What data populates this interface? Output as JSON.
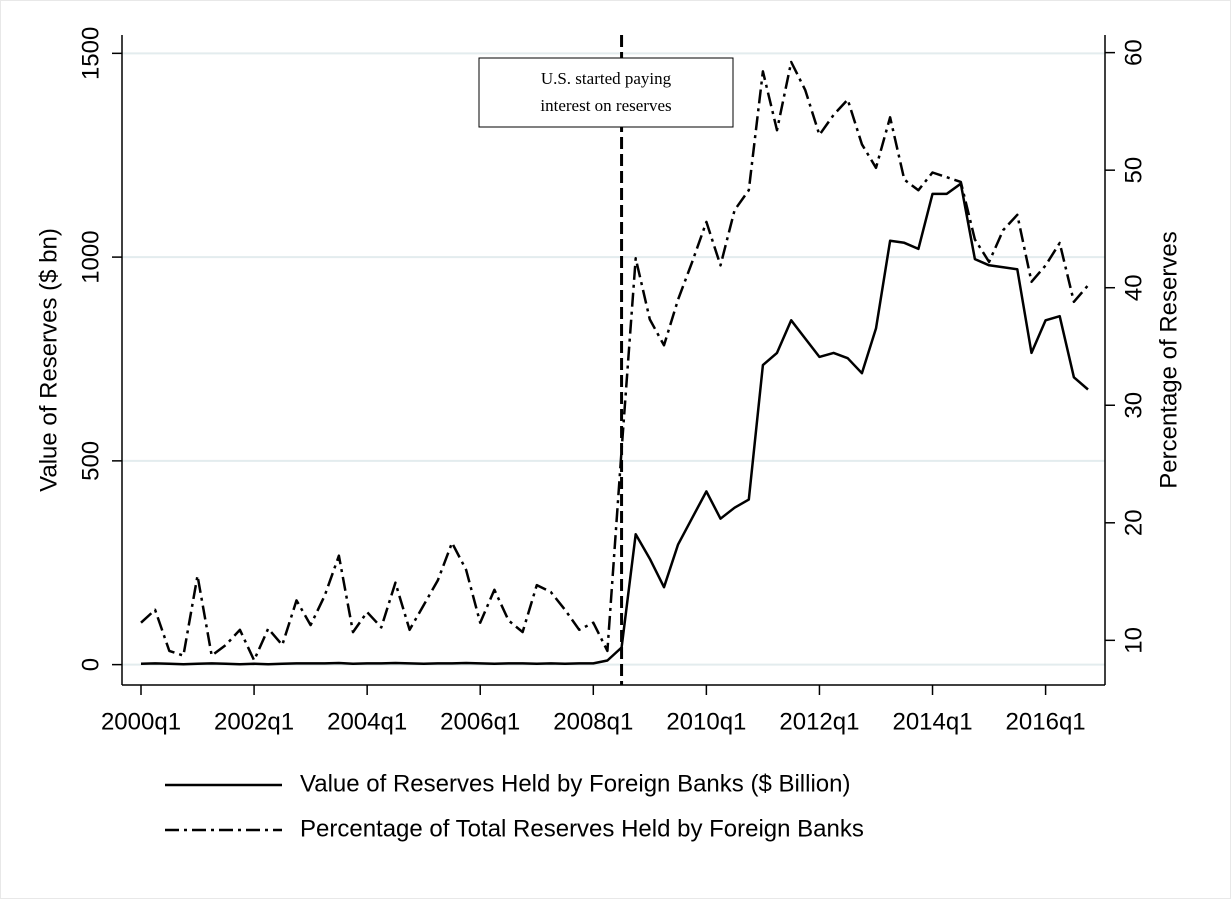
{
  "chart_data": {
    "type": "line",
    "ylabel": "Value of Reserves ($ bn)",
    "y2label": "Percentage of Reserves",
    "categories": [
      "2000q1",
      null,
      null,
      null,
      null,
      null,
      null,
      null,
      "2002q1",
      null,
      null,
      null,
      null,
      null,
      null,
      null,
      "2004q1",
      null,
      null,
      null,
      null,
      null,
      null,
      null,
      "2006q1",
      null,
      null,
      null,
      null,
      null,
      null,
      null,
      "2008q1",
      null,
      null,
      null,
      null,
      null,
      null,
      null,
      "2010q1",
      null,
      null,
      null,
      null,
      null,
      null,
      null,
      "2012q1",
      null,
      null,
      null,
      null,
      null,
      null,
      null,
      "2014q1",
      null,
      null,
      null,
      null,
      null,
      null,
      null,
      "2016q1",
      null,
      null,
      null
    ],
    "series": [
      {
        "name": "Value of Reserves Held by Foreign Banks ($ Billion)",
        "color": "#000000",
        "dash": "solid",
        "values": [
          2,
          3,
          2,
          1,
          2,
          3,
          2,
          1,
          2,
          1,
          2,
          3,
          3,
          3,
          4,
          2,
          3,
          3,
          4,
          3,
          2,
          3,
          3,
          4,
          3,
          2,
          3,
          3,
          2,
          3,
          2,
          3,
          3,
          10,
          42,
          320,
          260,
          190,
          295,
          360,
          425,
          358,
          385,
          405,
          735,
          765,
          845,
          800,
          755,
          765,
          752,
          715,
          825,
          1040,
          1035,
          1020,
          1155,
          1155,
          1180,
          995,
          980,
          975,
          970,
          765,
          845,
          855,
          705,
          675
        ]
      },
      {
        "name": "Percentage of Total Reserves Held by Foreign Banks",
        "color": "#000000",
        "dash": "dashdot",
        "axis": "y2",
        "values": [
          11.5,
          12.6,
          9.1,
          8.7,
          15.5,
          8.7,
          9.6,
          10.9,
          8.3,
          11,
          9.6,
          13.4,
          11.3,
          13.8,
          17.2,
          10.7,
          12.4,
          11.1,
          14.9,
          10.9,
          13,
          15.1,
          18.3,
          16,
          11.5,
          14.3,
          11.7,
          10.7,
          14.7,
          14.1,
          12.6,
          10.9,
          11.5,
          9.1,
          26.2,
          42.5,
          37.3,
          35.1,
          39,
          42.2,
          45.6,
          41.9,
          46.6,
          48.3,
          58.4,
          53.4,
          59.2,
          56.8,
          53,
          54.7,
          56,
          52.2,
          50.2,
          54.5,
          49.2,
          48.3,
          49.8,
          49.4,
          49,
          44.1,
          42.2,
          44.9,
          46.2,
          40.5,
          41.9,
          43.8,
          38.8,
          40.2
        ]
      }
    ],
    "ylim": [
      -50,
      1545
    ],
    "yticks": [
      0,
      500,
      1000,
      1500
    ],
    "y2lim": [
      6.2,
      61.5
    ],
    "y2ticks": [
      10,
      20,
      30,
      40,
      50,
      60
    ],
    "grid": true,
    "grid_color": "#e3ecee",
    "annotation": {
      "lines": [
        "U.S. started paying",
        "interest on reserves"
      ],
      "at": 34
    },
    "legend": "bottom"
  }
}
